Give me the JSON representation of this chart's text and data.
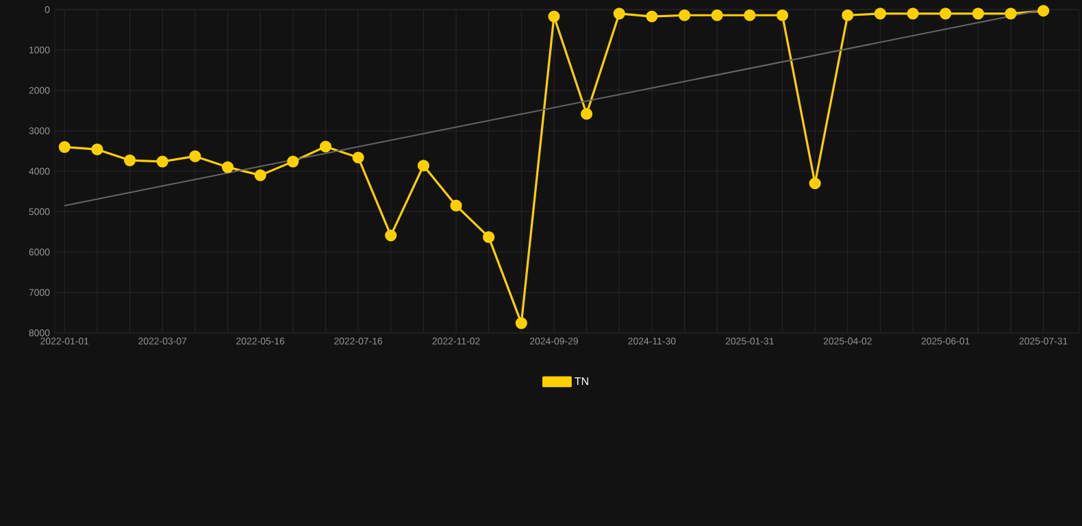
{
  "chart_data": {
    "type": "line",
    "categories": [
      "2022-01-01",
      null,
      null,
      "2022-03-07",
      null,
      null,
      "2022-05-16",
      null,
      null,
      "2022-07-16",
      null,
      null,
      "2022-11-02",
      null,
      null,
      "2024-09-29",
      null,
      null,
      "2024-11-30",
      null,
      null,
      "2025-01-31",
      null,
      null,
      "2025-04-02",
      null,
      null,
      "2025-06-01",
      null,
      null,
      "2025-07-31"
    ],
    "series": [
      {
        "name": "TN",
        "color": "#ffd000",
        "marker": "circle",
        "values": [
          3400,
          3460,
          3730,
          3760,
          3630,
          3900,
          4100,
          3760,
          3390,
          3660,
          5590,
          3860,
          4850,
          5630,
          7760,
          170,
          2580,
          100,
          170,
          140,
          140,
          140,
          140,
          4300,
          140,
          100,
          100,
          100,
          100,
          100,
          30
        ]
      },
      {
        "type": "line",
        "color": "#666666",
        "values": [
          4850,
          null,
          null,
          null,
          null,
          null,
          null,
          null,
          null,
          null,
          null,
          null,
          null,
          null,
          null,
          null,
          null,
          null,
          null,
          null,
          null,
          null,
          null,
          null,
          null,
          null,
          null,
          null,
          null,
          null,
          0
        ]
      }
    ],
    "ylim": [
      8000,
      0
    ],
    "yticks": [
      0,
      1000,
      2000,
      3000,
      4000,
      5000,
      6000,
      7000,
      8000
    ],
    "grid": true,
    "legend": "bottom",
    "line_style": "solid"
  }
}
